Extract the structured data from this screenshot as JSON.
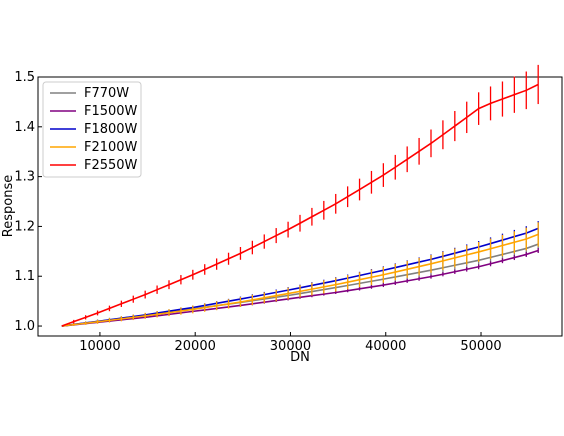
{
  "chart_data": {
    "type": "line",
    "title": "",
    "xlabel": "DN",
    "ylabel": "Response",
    "xlim": [
      3500,
      58500
    ],
    "ylim": [
      0.98,
      1.5
    ],
    "xticks": [
      10000,
      20000,
      30000,
      40000,
      50000
    ],
    "xtick_labels": [
      "10000",
      "20000",
      "30000",
      "40000",
      "50000"
    ],
    "yticks": [
      1.0,
      1.1,
      1.2,
      1.3,
      1.4,
      1.5
    ],
    "ytick_labels": [
      "1.0",
      "1.1",
      "1.2",
      "1.3",
      "1.4",
      "1.5"
    ],
    "legend_position": "upper-left",
    "grid": false,
    "series": [
      {
        "name": "F770W",
        "color": "#808080",
        "x": [
          6000,
          10000,
          15000,
          20000,
          25000,
          30000,
          35000,
          40000,
          45000,
          50000,
          55000,
          56500
        ],
        "y": [
          1.0,
          1.01,
          1.022,
          1.035,
          1.048,
          1.062,
          1.078,
          1.095,
          1.113,
          1.133,
          1.157,
          1.168
        ],
        "err": [
          0.002,
          0.004,
          0.005,
          0.006,
          0.007,
          0.008,
          0.009,
          0.01,
          0.012,
          0.014,
          0.016,
          0.017
        ]
      },
      {
        "name": "F1500W",
        "color": "#800080",
        "x": [
          6000,
          10000,
          15000,
          20000,
          25000,
          30000,
          35000,
          40000,
          45000,
          50000,
          55000,
          56500
        ],
        "y": [
          1.0,
          1.008,
          1.018,
          1.03,
          1.042,
          1.055,
          1.068,
          1.083,
          1.1,
          1.12,
          1.145,
          1.155
        ],
        "err": [
          0.001,
          0.002,
          0.002,
          0.002,
          0.003,
          0.003,
          0.003,
          0.004,
          0.004,
          0.005,
          0.005,
          0.005
        ]
      },
      {
        "name": "F1800W",
        "color": "#0000cc",
        "x": [
          6000,
          10000,
          15000,
          20000,
          25000,
          30000,
          35000,
          40000,
          45000,
          50000,
          55000,
          56500
        ],
        "y": [
          1.0,
          1.01,
          1.023,
          1.038,
          1.055,
          1.073,
          1.092,
          1.113,
          1.135,
          1.16,
          1.188,
          1.2
        ],
        "err": [
          0.001,
          0.002,
          0.003,
          0.004,
          0.005,
          0.006,
          0.007,
          0.008,
          0.01,
          0.012,
          0.014,
          0.015
        ]
      },
      {
        "name": "F2100W",
        "color": "#ffa500",
        "x": [
          6000,
          10000,
          15000,
          20000,
          25000,
          30000,
          35000,
          40000,
          45000,
          50000,
          55000,
          56500
        ],
        "y": [
          1.0,
          1.009,
          1.021,
          1.034,
          1.049,
          1.066,
          1.084,
          1.104,
          1.126,
          1.15,
          1.176,
          1.188
        ],
        "err": [
          0.002,
          0.004,
          0.006,
          0.008,
          0.01,
          0.012,
          0.014,
          0.016,
          0.018,
          0.02,
          0.023,
          0.025
        ]
      },
      {
        "name": "F2550W",
        "color": "#ff0000",
        "x": [
          6000,
          10000,
          15000,
          20000,
          25000,
          30000,
          35000,
          40000,
          45000,
          50000,
          55000,
          56500
        ],
        "y": [
          1.0,
          1.028,
          1.065,
          1.105,
          1.148,
          1.196,
          1.248,
          1.306,
          1.37,
          1.44,
          1.475,
          1.49
        ],
        "err": [
          0.003,
          0.005,
          0.008,
          0.01,
          0.013,
          0.016,
          0.02,
          0.024,
          0.028,
          0.033,
          0.038,
          0.04
        ]
      }
    ]
  }
}
